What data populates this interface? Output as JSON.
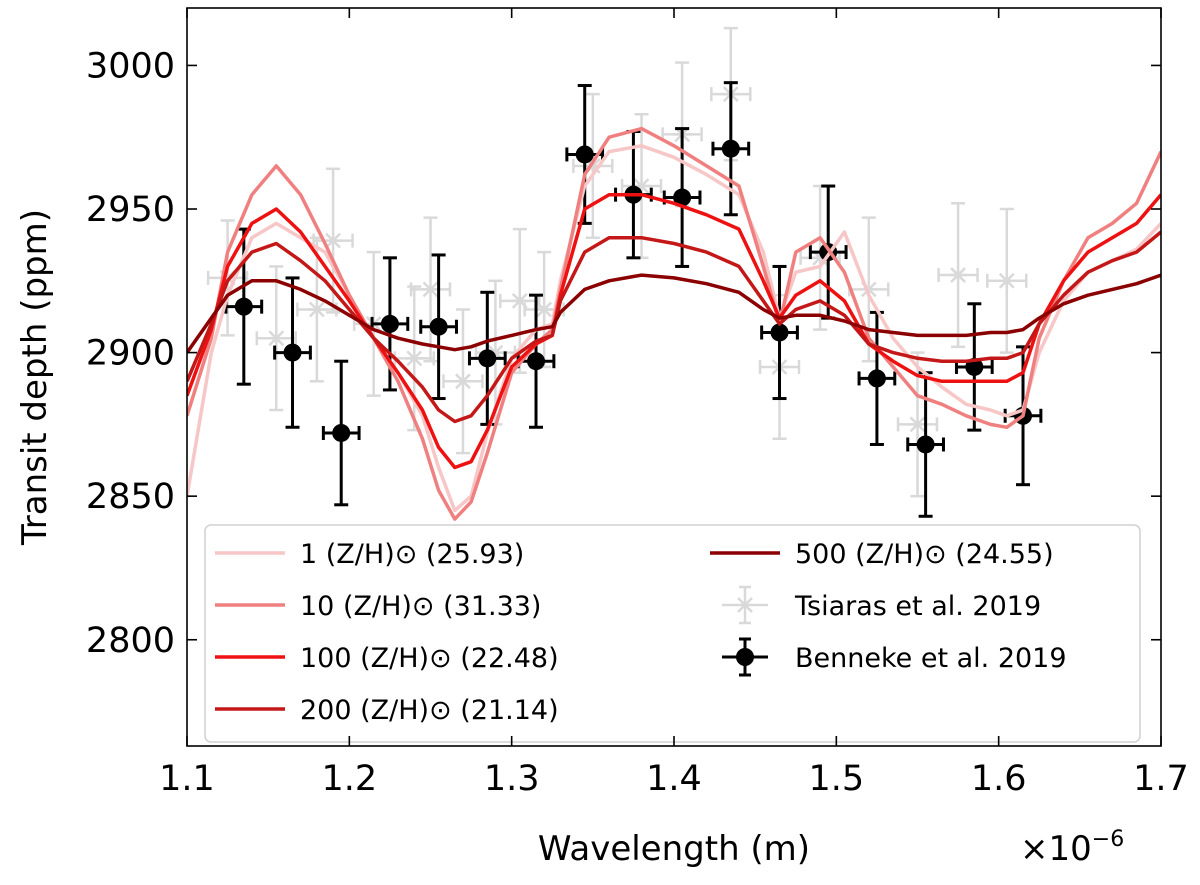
{
  "chart_data": {
    "type": "line",
    "xlabel": "Wavelength (m)",
    "ylabel": "Transit depth (ppm)",
    "x_offset_label": "×10",
    "x_offset_exponent": "−6",
    "xlim": [
      1.1e-06,
      1.7e-06
    ],
    "ylim": [
      2763,
      3020
    ],
    "x_ticks": [
      1.1e-06,
      1.2e-06,
      1.3e-06,
      1.4e-06,
      1.5e-06,
      1.6e-06,
      1.7e-06
    ],
    "x_tick_labels": [
      "1.1",
      "1.2",
      "1.3",
      "1.4",
      "1.5",
      "1.6",
      "1.7"
    ],
    "y_ticks": [
      2800,
      2850,
      2900,
      2950,
      3000
    ],
    "y_tick_labels": [
      "2800",
      "2850",
      "2900",
      "2950",
      "3000"
    ],
    "grid": false,
    "legend_position": "lower center",
    "model_x": [
      1.1e-06,
      1.115e-06,
      1.125e-06,
      1.14e-06,
      1.155e-06,
      1.17e-06,
      1.185e-06,
      1.2e-06,
      1.215e-06,
      1.23e-06,
      1.245e-06,
      1.255e-06,
      1.265e-06,
      1.275e-06,
      1.285e-06,
      1.3e-06,
      1.315e-06,
      1.325e-06,
      1.33e-06,
      1.345e-06,
      1.36e-06,
      1.38e-06,
      1.4e-06,
      1.42e-06,
      1.44e-06,
      1.455e-06,
      1.465e-06,
      1.475e-06,
      1.49e-06,
      1.505e-06,
      1.52e-06,
      1.535e-06,
      1.55e-06,
      1.565e-06,
      1.58e-06,
      1.595e-06,
      1.605e-06,
      1.615e-06,
      1.625e-06,
      1.64e-06,
      1.655e-06,
      1.67e-06,
      1.685e-06,
      1.7e-06
    ],
    "series": [
      {
        "name": "1 (Z/H)⊙ (25.93)",
        "color": "#f7c6c6",
        "values": [
          2850,
          2900,
          2920,
          2940,
          2945,
          2940,
          2935,
          2920,
          2905,
          2893,
          2878,
          2860,
          2845,
          2850,
          2872,
          2898,
          2908,
          2910,
          2925,
          2958,
          2970,
          2972,
          2968,
          2962,
          2955,
          2935,
          2912,
          2928,
          2930,
          2942,
          2920,
          2905,
          2895,
          2888,
          2882,
          2880,
          2878,
          2880,
          2900,
          2918,
          2928,
          2932,
          2936,
          2945
        ]
      },
      {
        "name": "10 (Z/H)⊙ (31.33)",
        "color": "#f08080",
        "values": [
          2878,
          2905,
          2935,
          2955,
          2965,
          2955,
          2938,
          2920,
          2905,
          2890,
          2870,
          2852,
          2842,
          2848,
          2865,
          2893,
          2903,
          2908,
          2922,
          2962,
          2975,
          2978,
          2972,
          2965,
          2958,
          2930,
          2910,
          2935,
          2940,
          2928,
          2905,
          2895,
          2885,
          2882,
          2878,
          2875,
          2874,
          2878,
          2905,
          2925,
          2940,
          2945,
          2952,
          2970
        ]
      },
      {
        "name": "100 (Z/H)⊙ (22.48)",
        "color": "#ee1111",
        "values": [
          2885,
          2908,
          2930,
          2945,
          2950,
          2942,
          2930,
          2918,
          2905,
          2893,
          2880,
          2867,
          2860,
          2862,
          2873,
          2895,
          2903,
          2906,
          2920,
          2950,
          2955,
          2955,
          2952,
          2948,
          2943,
          2925,
          2912,
          2920,
          2925,
          2918,
          2903,
          2897,
          2892,
          2890,
          2890,
          2890,
          2890,
          2893,
          2910,
          2925,
          2935,
          2940,
          2945,
          2955
        ]
      },
      {
        "name": "200 (Z/H)⊙ (21.14)",
        "color": "#c41818",
        "values": [
          2890,
          2910,
          2925,
          2935,
          2938,
          2932,
          2925,
          2915,
          2905,
          2897,
          2888,
          2880,
          2876,
          2878,
          2885,
          2898,
          2904,
          2906,
          2918,
          2935,
          2940,
          2940,
          2938,
          2935,
          2930,
          2918,
          2910,
          2915,
          2918,
          2913,
          2903,
          2900,
          2898,
          2897,
          2897,
          2898,
          2898,
          2900,
          2910,
          2920,
          2928,
          2932,
          2935,
          2942
        ]
      },
      {
        "name": "500 (Z/H)⊙ (24.55)",
        "color": "#8b0000",
        "values": [
          2900,
          2912,
          2920,
          2925,
          2925,
          2922,
          2918,
          2913,
          2908,
          2905,
          2903,
          2902,
          2901,
          2902,
          2904,
          2906,
          2908,
          2909,
          2914,
          2922,
          2925,
          2927,
          2926,
          2924,
          2921,
          2915,
          2912,
          2913,
          2913,
          2911,
          2908,
          2907,
          2906,
          2906,
          2906,
          2907,
          2907,
          2908,
          2912,
          2917,
          2920,
          2922,
          2924,
          2927
        ]
      }
    ],
    "observations": [
      {
        "name": "Tsiaras et al. 2019",
        "color": "#d9d9d9",
        "marker": "x",
        "points": [
          {
            "x": 1.125e-06,
            "y": 2926,
            "yerr": 20,
            "xerr": 1.2e-08
          },
          {
            "x": 1.155e-06,
            "y": 2905,
            "yerr": 25,
            "xerr": 1.2e-08
          },
          {
            "x": 1.18e-06,
            "y": 2915,
            "yerr": 25,
            "xerr": 1.2e-08
          },
          {
            "x": 1.19e-06,
            "y": 2939,
            "yerr": 25,
            "xerr": 1.2e-08
          },
          {
            "x": 1.215e-06,
            "y": 2910,
            "yerr": 25,
            "xerr": 1.2e-08
          },
          {
            "x": 1.24e-06,
            "y": 2898,
            "yerr": 25,
            "xerr": 1.2e-08
          },
          {
            "x": 1.25e-06,
            "y": 2922,
            "yerr": 25,
            "xerr": 1.2e-08
          },
          {
            "x": 1.27e-06,
            "y": 2890,
            "yerr": 25,
            "xerr": 1.2e-08
          },
          {
            "x": 1.29e-06,
            "y": 2900,
            "yerr": 25,
            "xerr": 1.2e-08
          },
          {
            "x": 1.305e-06,
            "y": 2918,
            "yerr": 25,
            "xerr": 1.2e-08
          },
          {
            "x": 1.32e-06,
            "y": 2915,
            "yerr": 20,
            "xerr": 1.2e-08
          },
          {
            "x": 1.35e-06,
            "y": 2965,
            "yerr": 25,
            "xerr": 1.2e-08
          },
          {
            "x": 1.38e-06,
            "y": 2958,
            "yerr": 25,
            "xerr": 1.2e-08
          },
          {
            "x": 1.405e-06,
            "y": 2976,
            "yerr": 25,
            "xerr": 1.2e-08
          },
          {
            "x": 1.435e-06,
            "y": 2990,
            "yerr": 23,
            "xerr": 1.2e-08
          },
          {
            "x": 1.465e-06,
            "y": 2895,
            "yerr": 25,
            "xerr": 1.2e-08
          },
          {
            "x": 1.49e-06,
            "y": 2933,
            "yerr": 25,
            "xerr": 1.2e-08
          },
          {
            "x": 1.52e-06,
            "y": 2922,
            "yerr": 25,
            "xerr": 1.2e-08
          },
          {
            "x": 1.55e-06,
            "y": 2875,
            "yerr": 25,
            "xerr": 1.2e-08
          },
          {
            "x": 1.575e-06,
            "y": 2927,
            "yerr": 25,
            "xerr": 1.2e-08
          },
          {
            "x": 1.605e-06,
            "y": 2925,
            "yerr": 25,
            "xerr": 1.2e-08
          }
        ]
      },
      {
        "name": "Benneke et al. 2019",
        "color": "#000000",
        "marker": "o",
        "points": [
          {
            "x": 1.135e-06,
            "y": 2916,
            "yerr": 27,
            "xerr": 1.1e-08
          },
          {
            "x": 1.165e-06,
            "y": 2900,
            "yerr": 26,
            "xerr": 1.1e-08
          },
          {
            "x": 1.195e-06,
            "y": 2872,
            "yerr": 25,
            "xerr": 1.1e-08
          },
          {
            "x": 1.225e-06,
            "y": 2910,
            "yerr": 23,
            "xerr": 1.1e-08
          },
          {
            "x": 1.255e-06,
            "y": 2909,
            "yerr": 25,
            "xerr": 1.1e-08
          },
          {
            "x": 1.285e-06,
            "y": 2898,
            "yerr": 23,
            "xerr": 1.1e-08
          },
          {
            "x": 1.315e-06,
            "y": 2897,
            "yerr": 23,
            "xerr": 1.1e-08
          },
          {
            "x": 1.345e-06,
            "y": 2969,
            "yerr": 24,
            "xerr": 1.1e-08
          },
          {
            "x": 1.375e-06,
            "y": 2955,
            "yerr": 22,
            "xerr": 1.1e-08
          },
          {
            "x": 1.405e-06,
            "y": 2954,
            "yerr": 24,
            "xerr": 1.1e-08
          },
          {
            "x": 1.435e-06,
            "y": 2971,
            "yerr": 23,
            "xerr": 1.1e-08
          },
          {
            "x": 1.465e-06,
            "y": 2907,
            "yerr": 23,
            "xerr": 1.1e-08
          },
          {
            "x": 1.495e-06,
            "y": 2935,
            "yerr": 23,
            "xerr": 1.1e-08
          },
          {
            "x": 1.525e-06,
            "y": 2891,
            "yerr": 23,
            "xerr": 1.1e-08
          },
          {
            "x": 1.555e-06,
            "y": 2868,
            "yerr": 25,
            "xerr": 1.1e-08
          },
          {
            "x": 1.585e-06,
            "y": 2895,
            "yerr": 22,
            "xerr": 1.1e-08
          },
          {
            "x": 1.615e-06,
            "y": 2878,
            "yerr": 24,
            "xerr": 1.1e-08
          }
        ]
      }
    ]
  }
}
